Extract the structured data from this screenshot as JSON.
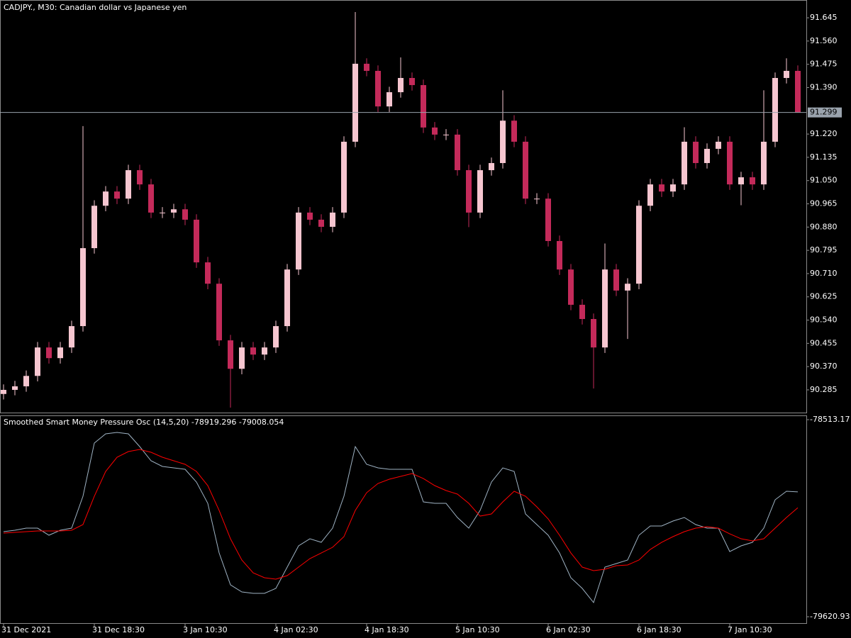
{
  "chart_data": [
    {
      "type": "candlestick",
      "title": "CADJPY., M30:  Canadian dollar vs Japanese yen",
      "categories": [
        "31 Dec 2021",
        null,
        null,
        null,
        null,
        null,
        null,
        null,
        "31 Dec 18:30",
        null,
        null,
        null,
        null,
        null,
        null,
        null,
        "3 Jan 10:30",
        null,
        null,
        null,
        null,
        null,
        null,
        null,
        "4 Jan 02:30",
        null,
        null,
        null,
        null,
        null,
        null,
        null,
        "4 Jan 18:30",
        null,
        null,
        null,
        null,
        null,
        null,
        null,
        "5 Jan 10:30",
        null,
        null,
        null,
        null,
        null,
        null,
        null,
        "6 Jan 02:30",
        null,
        null,
        null,
        null,
        null,
        null,
        null,
        "6 Jan 18:30",
        null,
        null,
        null,
        null,
        null,
        null,
        null,
        "7 Jan 10:30",
        null,
        null,
        null,
        null,
        null,
        null
      ],
      "open": [
        90.27,
        90.285,
        90.298,
        90.336,
        90.44,
        90.401,
        90.44,
        90.518,
        90.803,
        90.958,
        91.01,
        90.984,
        91.088,
        91.036,
        90.933,
        90.933,
        90.945,
        90.907,
        90.751,
        90.673,
        90.466,
        90.362,
        90.44,
        90.414,
        90.44,
        90.518,
        90.725,
        90.933,
        90.907,
        90.881,
        90.933,
        91.192,
        91.477,
        91.451,
        91.321,
        91.373,
        91.425,
        91.399,
        91.244,
        91.218,
        91.218,
        91.088,
        90.933,
        91.088,
        91.114,
        91.269,
        91.192,
        90.984,
        90.984,
        90.829,
        90.725,
        90.596,
        90.544,
        90.44,
        90.725,
        90.648,
        90.673,
        90.958,
        91.036,
        91.01,
        91.036,
        91.192,
        91.114,
        91.166,
        91.192,
        91.036,
        91.062,
        91.036,
        91.192,
        91.425,
        91.451
      ],
      "high": [
        90.305,
        90.318,
        90.356,
        90.46,
        90.46,
        90.46,
        90.538,
        91.249,
        90.978,
        91.03,
        91.03,
        91.108,
        91.108,
        91.056,
        90.953,
        90.965,
        90.965,
        90.927,
        90.771,
        90.693,
        90.486,
        90.46,
        90.46,
        90.46,
        90.538,
        90.745,
        90.953,
        90.953,
        90.927,
        90.953,
        91.212,
        91.666,
        91.497,
        91.471,
        91.393,
        91.5,
        91.445,
        91.419,
        91.264,
        91.238,
        91.238,
        91.108,
        91.108,
        91.134,
        91.38,
        91.289,
        91.212,
        91.004,
        91.004,
        90.849,
        90.745,
        90.616,
        90.564,
        90.82,
        90.745,
        90.693,
        90.978,
        91.056,
        91.056,
        91.056,
        91.245,
        91.212,
        91.186,
        91.212,
        91.212,
        91.082,
        91.082,
        91.38,
        91.445,
        91.497,
        91.471
      ],
      "low": [
        90.25,
        90.265,
        90.278,
        90.316,
        90.381,
        90.381,
        90.42,
        90.498,
        90.783,
        90.938,
        90.964,
        90.964,
        91.016,
        90.913,
        90.913,
        90.913,
        90.887,
        90.731,
        90.653,
        90.446,
        90.22,
        90.342,
        90.394,
        90.394,
        90.42,
        90.498,
        90.705,
        90.887,
        90.861,
        90.861,
        90.913,
        91.172,
        91.431,
        91.301,
        91.301,
        91.353,
        91.379,
        91.224,
        91.198,
        91.198,
        91.068,
        90.88,
        90.913,
        91.068,
        91.094,
        91.172,
        90.964,
        90.964,
        90.809,
        90.705,
        90.576,
        90.524,
        90.29,
        90.42,
        90.628,
        90.471,
        90.653,
        90.938,
        90.99,
        90.99,
        91.016,
        91.094,
        91.094,
        91.146,
        91.016,
        90.96,
        91.016,
        91.016,
        91.172,
        91.405,
        91.299
      ],
      "close": [
        90.285,
        90.298,
        90.336,
        90.44,
        90.401,
        90.44,
        90.518,
        90.803,
        90.958,
        91.01,
        90.984,
        91.088,
        91.036,
        90.933,
        90.933,
        90.945,
        90.907,
        90.751,
        90.673,
        90.466,
        90.362,
        90.44,
        90.414,
        90.44,
        90.518,
        90.725,
        90.933,
        90.907,
        90.881,
        90.933,
        91.192,
        91.477,
        91.451,
        91.321,
        91.373,
        91.425,
        91.399,
        91.244,
        91.218,
        91.218,
        91.088,
        90.933,
        91.088,
        91.114,
        91.269,
        91.192,
        90.984,
        90.984,
        90.829,
        90.725,
        90.596,
        90.544,
        90.44,
        90.725,
        90.648,
        90.673,
        90.958,
        91.036,
        91.01,
        91.036,
        91.192,
        91.114,
        91.166,
        91.192,
        91.036,
        91.062,
        91.036,
        91.192,
        91.425,
        91.451,
        91.299
      ],
      "up_color": "#f6c6d0",
      "down_color": "#c42a5a",
      "ylim": [
        90.202,
        91.71
      ],
      "yticks": [
        90.285,
        {
          "value": 90.37,
          "label": "90.370"
        },
        90.455,
        {
          "value": 90.54,
          "label": "90.540"
        },
        90.625,
        {
          "value": 90.71,
          "label": "90.710"
        },
        90.795,
        {
          "value": 90.88,
          "label": "90.880"
        },
        90.965,
        {
          "value": 91.05,
          "label": "91.050"
        },
        91.135,
        {
          "value": 91.22,
          "label": "91.220"
        },
        {
          "value": 91.39,
          "label": "91.390"
        },
        91.475,
        {
          "value": 91.56,
          "label": "91.560"
        },
        91.645
      ],
      "current_price": 91.299,
      "current_price_color": "#9aa3ad",
      "grid": false
    },
    {
      "type": "line",
      "title": "Smoothed Smart Money Pressure Osc (14,5,20)",
      "series": [
        {
          "color": "#9fb3c4",
          "values": [
            -79142.8,
            -79134.8,
            -79122.9,
            -79122.9,
            -79162.7,
            -79134.8,
            -79122.9,
            -78943.6,
            -78644.7,
            -78592.9,
            -78584.9,
            -78592.9,
            -78664.6,
            -78744.3,
            -78776.2,
            -78784.2,
            -78792.1,
            -78863.8,
            -78983.4,
            -79262.4,
            -79441.7,
            -79481.5,
            -79489.5,
            -79489.5,
            -79461.6,
            -79342.1,
            -79222.5,
            -79182.7,
            -79202.6,
            -79122.9,
            -78943.6,
            -78664.6,
            -78764.2,
            -78784.2,
            -78792.1,
            -78792.1,
            -78792.1,
            -78975.4,
            -78983.4,
            -78983.4,
            -79063.1,
            -79122.9,
            -79023.3,
            -78863.8,
            -78784.2,
            -78804.1,
            -79043.2,
            -79102.9,
            -79162.7,
            -79262.4,
            -79401.8,
            -79461.6,
            -79541.3,
            -79342.1,
            -79322.2,
            -79302.2,
            -79162.7,
            -79110.9,
            -79110.9,
            -79083.0,
            -79063.1,
            -79102.9,
            -79122.9,
            -79122.9,
            -79254.4,
            -79222.5,
            -79202.6,
            -79122.9,
            -78963.5,
            -78915.7,
            -78919.296
          ]
        },
        {
          "color": "#ff0000",
          "values": [
            -79150.8,
            -79146.8,
            -79142.8,
            -79138.8,
            -79138.8,
            -79138.8,
            -79134.8,
            -79102.9,
            -78943.6,
            -78804.1,
            -78724.4,
            -78692.5,
            -78680.6,
            -78696.5,
            -78724.4,
            -78744.3,
            -78764.2,
            -78804.1,
            -78883.8,
            -79023.3,
            -79182.7,
            -79302.2,
            -79374.0,
            -79401.8,
            -79409.8,
            -79389.9,
            -79342.1,
            -79294.3,
            -79262.4,
            -79230.5,
            -79170.7,
            -79023.3,
            -78923.7,
            -78871.9,
            -78847.9,
            -78832.0,
            -78816.1,
            -78844.0,
            -78883.8,
            -78911.7,
            -78931.6,
            -78983.4,
            -79055.2,
            -79043.2,
            -78975.4,
            -78915.7,
            -78943.6,
            -79003.4,
            -79071.1,
            -79162.7,
            -79262.4,
            -79342.1,
            -79362.0,
            -79354.0,
            -79334.1,
            -79330.1,
            -79302.2,
            -79242.5,
            -79202.6,
            -79170.7,
            -79142.8,
            -79122.9,
            -79114.9,
            -79122.9,
            -79154.8,
            -79182.7,
            -79194.6,
            -79182.7,
            -79122.9,
            -79063.1,
            -79008.054
          ]
        }
      ],
      "ylim": [
        -79620.93,
        -78513.17
      ],
      "yticks": [
        -79620.93,
        -78513.17
      ]
    }
  ]
}
